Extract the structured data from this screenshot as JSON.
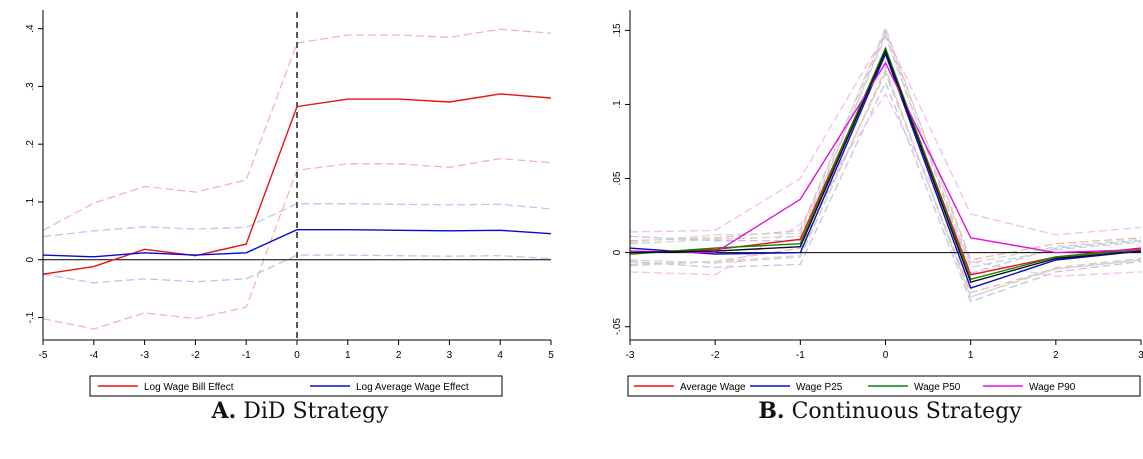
{
  "captions": [
    {
      "letter": "A.",
      "text": "DiD Strategy"
    },
    {
      "letter": "B.",
      "text": "Continuous Strategy"
    }
  ],
  "chart_data": [
    {
      "type": "line",
      "title": "",
      "xlabel": "",
      "ylabel": "",
      "x": [
        -5,
        -4,
        -3,
        -2,
        -1,
        0,
        1,
        2,
        3,
        4,
        5
      ],
      "xticks": [
        "-5",
        "-4",
        "-3",
        "-2",
        "-1",
        "0",
        "1",
        "2",
        "3",
        "4",
        "5"
      ],
      "yticks": [
        {
          "value": -0.1,
          "label": "-.1"
        },
        {
          "value": 0,
          "label": "0"
        },
        {
          "value": 0.1,
          "label": ".1"
        },
        {
          "value": 0.2,
          "label": ".2"
        },
        {
          "value": 0.3,
          "label": ".3"
        },
        {
          "value": 0.4,
          "label": ".4"
        }
      ],
      "xlim": [
        -5,
        5
      ],
      "ylim": [
        -0.139,
        0.415
      ],
      "reference_line_x": 0,
      "grid": false,
      "legend_position": "bottom",
      "series": [
        {
          "name": "Log Wage Bill Effect",
          "color": "#e8140f",
          "values": [
            -0.025,
            -0.012,
            0.018,
            0.007,
            0.027,
            0.265,
            0.278,
            0.278,
            0.273,
            0.287,
            0.28
          ]
        },
        {
          "name": "Log Average Wage Effect",
          "color": "#0a0acc",
          "values": [
            0.008,
            0.005,
            0.012,
            0.008,
            0.012,
            0.052,
            0.052,
            0.051,
            0.05,
            0.051,
            0.045
          ]
        }
      ],
      "bands": [
        {
          "of": "Log Wage Bill Effect",
          "color": "#f5b4b4",
          "lower": [
            -0.102,
            -0.12,
            -0.092,
            -0.102,
            -0.082,
            0.155,
            0.166,
            0.166,
            0.16,
            0.175,
            0.168
          ],
          "upper": [
            0.051,
            0.098,
            0.127,
            0.117,
            0.138,
            0.375,
            0.389,
            0.389,
            0.385,
            0.399,
            0.392
          ]
        },
        {
          "of": "Log Average Wage Effect",
          "color": "#c2c2f0",
          "lower": [
            -0.025,
            -0.04,
            -0.033,
            -0.038,
            -0.033,
            0.008,
            0.008,
            0.007,
            0.006,
            0.007,
            0.002
          ],
          "upper": [
            0.04,
            0.05,
            0.057,
            0.053,
            0.056,
            0.097,
            0.097,
            0.096,
            0.095,
            0.096,
            0.088
          ]
        }
      ]
    },
    {
      "type": "line",
      "title": "",
      "xlabel": "",
      "ylabel": "",
      "x": [
        -3,
        -2,
        -1,
        0,
        1,
        2,
        3
      ],
      "xticks": [
        "-3",
        "-2",
        "-1",
        "0",
        "1",
        "2",
        "3"
      ],
      "yticks": [
        {
          "value": -0.05,
          "label": "-.05"
        },
        {
          "value": 0,
          "label": "0"
        },
        {
          "value": 0.05,
          "label": ".05"
        },
        {
          "value": 0.1,
          "label": ".1"
        },
        {
          "value": 0.15,
          "label": ".15"
        }
      ],
      "xlim": [
        -3,
        3
      ],
      "ylim": [
        -0.059,
        0.157
      ],
      "grid": false,
      "legend_position": "bottom",
      "series": [
        {
          "name": "Average Wage",
          "color": "#e8140f",
          "values": [
            0.0,
            0.002,
            0.009,
            0.137,
            -0.015,
            -0.003,
            0.003
          ]
        },
        {
          "name": "Wage P25",
          "color": "#0a0acc",
          "values": [
            0.003,
            -0.001,
            0.0,
            0.134,
            -0.024,
            -0.005,
            0.001
          ]
        },
        {
          "name": "Wage P50",
          "color": "#118011",
          "values": [
            -0.001,
            0.003,
            0.006,
            0.138,
            -0.018,
            -0.003,
            0.002
          ]
        },
        {
          "name": "Wage P90",
          "color": "#e010e0",
          "values": [
            0.001,
            0.0,
            0.036,
            0.128,
            0.01,
            0.0,
            0.002
          ]
        },
        {
          "name": "",
          "color": "#101010",
          "values": [
            0.0,
            0.001,
            0.004,
            0.136,
            -0.02,
            -0.004,
            0.001
          ]
        }
      ],
      "bands": [
        {
          "of": "Average Wage",
          "color": "#f5b4b4",
          "lower": [
            -0.008,
            -0.006,
            0.003,
            0.121,
            -0.027,
            -0.011,
            -0.005
          ],
          "upper": [
            0.008,
            0.01,
            0.015,
            0.15,
            -0.005,
            0.006,
            0.01
          ]
        },
        {
          "of": "Wage P25",
          "color": "#c2c2f0",
          "lower": [
            -0.006,
            -0.01,
            -0.008,
            0.115,
            -0.033,
            -0.013,
            -0.006
          ],
          "upper": [
            0.011,
            0.008,
            0.008,
            0.148,
            -0.014,
            0.003,
            0.008
          ]
        },
        {
          "of": "Wage P50",
          "color": "#c8dcc8",
          "lower": [
            -0.009,
            -0.006,
            -0.002,
            0.123,
            -0.03,
            -0.011,
            -0.005
          ],
          "upper": [
            0.007,
            0.012,
            0.013,
            0.152,
            -0.007,
            0.004,
            0.009
          ]
        },
        {
          "of": "Wage P90",
          "color": "#f5bdf0",
          "lower": [
            -0.013,
            -0.015,
            0.019,
            0.107,
            -0.006,
            -0.016,
            -0.013
          ],
          "upper": [
            0.014,
            0.015,
            0.05,
            0.148,
            0.026,
            0.012,
            0.017
          ]
        },
        {
          "of": "",
          "color": "#d0d0d0",
          "lower": [
            -0.005,
            -0.007,
            -0.003,
            0.124,
            -0.03,
            -0.01,
            -0.004
          ],
          "upper": [
            0.006,
            0.009,
            0.011,
            0.146,
            -0.01,
            0.002,
            0.007
          ]
        }
      ]
    }
  ]
}
